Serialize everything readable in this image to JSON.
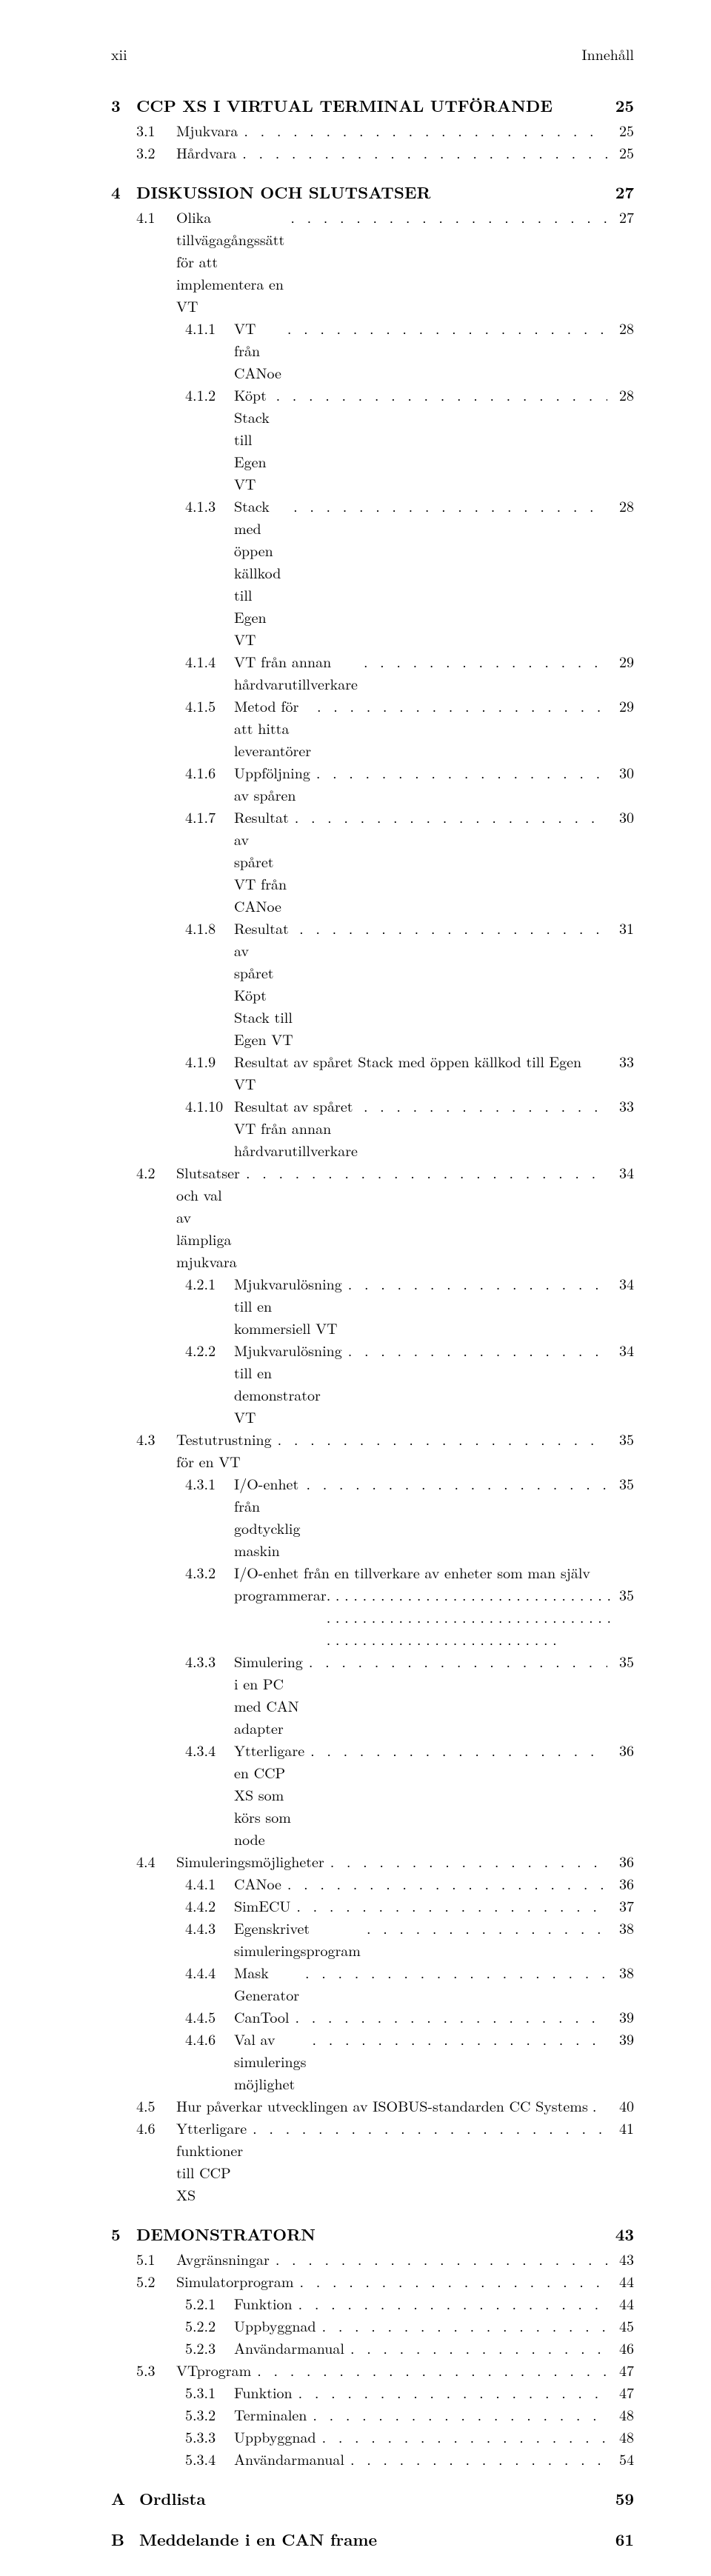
{
  "page_number_roman": "xii",
  "header_title": "Innehåll",
  "dot_fill": ". . . . . . . . . . . . . . . . . . . . . . . . . . . . . . . . . . . . . . . . . . . . . . . . . . . . . . . . . . . . . . . . . . . . . . . . . . . . . . . . . . . . . . . . . .",
  "chapters": [
    {
      "number": "3",
      "title": "CCP XS I VIRTUAL TERMINAL UTFÖRANDE",
      "page": "25",
      "sections": [
        {
          "number": "3.1",
          "title": "Mjukvara",
          "page": "25",
          "subsections": []
        },
        {
          "number": "3.2",
          "title": "Hårdvara",
          "page": "25",
          "subsections": []
        }
      ]
    },
    {
      "number": "4",
      "title": "DISKUSSION OCH SLUTSATSER",
      "page": "27",
      "sections": [
        {
          "number": "4.1",
          "title": "Olika tillvägagångssätt för att implementera en VT",
          "page": "27",
          "subsections": [
            {
              "number": "4.1.1",
              "title": "VT från CANoe",
              "page": "28"
            },
            {
              "number": "4.1.2",
              "title": "Köpt Stack till Egen VT",
              "page": "28"
            },
            {
              "number": "4.1.3",
              "title": "Stack med öppen källkod till Egen VT",
              "page": "28"
            },
            {
              "number": "4.1.4",
              "title": "VT från annan hårdvarutillverkare",
              "page": "29"
            },
            {
              "number": "4.1.5",
              "title": "Metod för att hitta leverantörer",
              "page": "29"
            },
            {
              "number": "4.1.6",
              "title": "Uppföljning av spåren",
              "page": "30"
            },
            {
              "number": "4.1.7",
              "title": "Resultat av spåret VT från CANoe",
              "page": "30"
            },
            {
              "number": "4.1.8",
              "title": "Resultat av spåret Köpt Stack till Egen VT",
              "page": "31"
            },
            {
              "number": "4.1.9",
              "title": "Resultat av spåret Stack med öppen källkod till Egen VT",
              "page": "33",
              "nodots": true
            },
            {
              "number": "4.1.10",
              "title": "Resultat av spåret VT från annan hårdvarutillverkare",
              "page": "33"
            }
          ]
        },
        {
          "number": "4.2",
          "title": "Slutsatser och val av lämpliga mjukvara",
          "page": "34",
          "subsections": [
            {
              "number": "4.2.1",
              "title": "Mjukvarulösning till en kommersiell VT",
              "page": "34"
            },
            {
              "number": "4.2.2",
              "title": "Mjukvarulösning till en demonstrator VT",
              "page": "34"
            }
          ]
        },
        {
          "number": "4.3",
          "title": "Testutrustning för en VT",
          "page": "35",
          "subsections": [
            {
              "number": "4.3.1",
              "title": "I/O-enhet från godtycklig maskin",
              "page": "35"
            },
            {
              "number": "4.3.2",
              "title": "I/O-enhet från en tillverkare av enheter som man själv",
              "title2": "programmerar",
              "page": "35",
              "multiline": true
            },
            {
              "number": "4.3.3",
              "title": "Simulering i en PC med CAN adapter",
              "page": "35"
            },
            {
              "number": "4.3.4",
              "title": "Ytterligare en CCP XS som körs som node",
              "page": "36"
            }
          ]
        },
        {
          "number": "4.4",
          "title": "Simuleringsmöjligheter",
          "page": "36",
          "subsections": [
            {
              "number": "4.4.1",
              "title": "CANoe",
              "page": "36"
            },
            {
              "number": "4.4.2",
              "title": "SimECU",
              "page": "37"
            },
            {
              "number": "4.4.3",
              "title": "Egenskrivet simuleringsprogram",
              "page": "38"
            },
            {
              "number": "4.4.4",
              "title": "Mask Generator",
              "page": "38"
            },
            {
              "number": "4.4.5",
              "title": "CanTool",
              "page": "39"
            },
            {
              "number": "4.4.6",
              "title": "Val av simulerings möjlighet",
              "page": "39"
            }
          ]
        },
        {
          "number": "4.5",
          "title": "Hur påverkar utvecklingen av ISOBUS-standarden CC Systems",
          "page": "40",
          "shortdots": true,
          "subsections": []
        },
        {
          "number": "4.6",
          "title": "Ytterligare funktioner till CCP XS",
          "page": "41",
          "subsections": []
        }
      ]
    },
    {
      "number": "5",
      "title": "DEMONSTRATORN",
      "page": "43",
      "sections": [
        {
          "number": "5.1",
          "title": "Avgränsningar",
          "page": "43",
          "subsections": []
        },
        {
          "number": "5.2",
          "title": "Simulatorprogram",
          "page": "44",
          "subsections": [
            {
              "number": "5.2.1",
              "title": "Funktion",
              "page": "44"
            },
            {
              "number": "5.2.2",
              "title": "Uppbyggnad",
              "page": "45"
            },
            {
              "number": "5.2.3",
              "title": "Användarmanual",
              "page": "46"
            }
          ]
        },
        {
          "number": "5.3",
          "title": "VTprogram",
          "page": "47",
          "subsections": [
            {
              "number": "5.3.1",
              "title": "Funktion",
              "page": "47"
            },
            {
              "number": "5.3.2",
              "title": "Terminalen",
              "page": "48"
            },
            {
              "number": "5.3.3",
              "title": "Uppbyggnad",
              "page": "48"
            },
            {
              "number": "5.3.4",
              "title": "Användarmanual",
              "page": "54"
            }
          ]
        }
      ]
    }
  ],
  "appendices": [
    {
      "number": "A",
      "title": "Ordlista",
      "page": "59"
    },
    {
      "number": "B",
      "title": "Meddelande i en CAN frame",
      "page": "61"
    }
  ]
}
